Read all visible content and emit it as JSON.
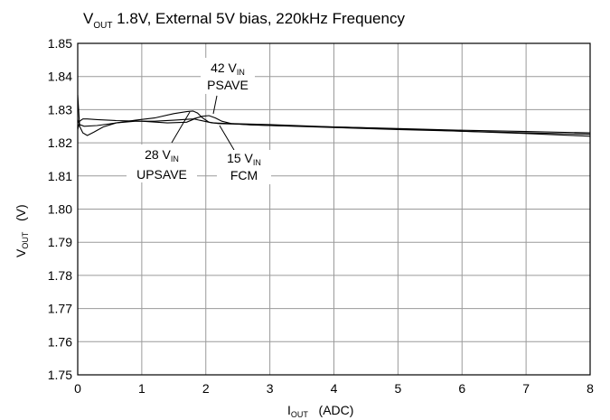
{
  "chart_data": {
    "type": "line",
    "title": {
      "main": "V",
      "sub": "OUT",
      "rest": " 1.8V, External 5V bias, 220kHz Frequency"
    },
    "xlabel": {
      "main": "I",
      "sub": "OUT",
      "rest": "   (ADC)"
    },
    "ylabel": {
      "main": "V",
      "sub": "OUT",
      "rest": "   (V)"
    },
    "xlim": [
      0,
      8
    ],
    "ylim": [
      1.75,
      1.85
    ],
    "x_ticks": [
      "0",
      "1",
      "2",
      "3",
      "4",
      "5",
      "6",
      "7",
      "8"
    ],
    "y_ticks": [
      "1.75",
      "1.76",
      "1.77",
      "1.78",
      "1.79",
      "1.80",
      "1.81",
      "1.82",
      "1.83",
      "1.84",
      "1.85"
    ],
    "grid": true,
    "series": [
      {
        "x": [
          0,
          0.03,
          0.08,
          0.15,
          0.3,
          0.6,
          1.0,
          1.4,
          1.7,
          1.82,
          1.9,
          2.1,
          2.4,
          3,
          4,
          5,
          6,
          7,
          8
        ],
        "y": [
          1.824,
          1.8265,
          1.8272,
          1.8272,
          1.827,
          1.8267,
          1.8265,
          1.826,
          1.8262,
          1.8272,
          1.8268,
          1.826,
          1.8258,
          1.8255,
          1.8248,
          1.8242,
          1.8235,
          1.8228,
          1.822
        ]
      },
      {
        "x": [
          0,
          0.03,
          0.08,
          0.15,
          0.25,
          0.4,
          0.6,
          0.9,
          1.2,
          1.5,
          1.7,
          1.8,
          1.87,
          1.95,
          2.05,
          2.2,
          2.5,
          3,
          4,
          5,
          6,
          7,
          8
        ],
        "y": [
          1.8345,
          1.825,
          1.823,
          1.8222,
          1.8232,
          1.8248,
          1.826,
          1.8268,
          1.8275,
          1.8288,
          1.8294,
          1.8296,
          1.829,
          1.8275,
          1.8262,
          1.8258,
          1.8256,
          1.8252,
          1.8248,
          1.8243,
          1.8238,
          1.8234,
          1.823
        ]
      },
      {
        "x": [
          0,
          0.03,
          0.1,
          0.3,
          0.6,
          0.9,
          1.2,
          1.5,
          1.8,
          1.95,
          2.05,
          2.15,
          2.25,
          2.4,
          2.7,
          3,
          4,
          5,
          6,
          7,
          8
        ],
        "y": [
          1.827,
          1.8255,
          1.825,
          1.8252,
          1.826,
          1.8265,
          1.8265,
          1.8268,
          1.8272,
          1.828,
          1.8282,
          1.8275,
          1.8265,
          1.8258,
          1.8254,
          1.8252,
          1.8246,
          1.824,
          1.8235,
          1.823,
          1.8226
        ]
      }
    ],
    "annotations": [
      {
        "main": "42 V",
        "sub": "IN",
        "line2": "PSAVE"
      },
      {
        "main": "28 V",
        "sub": "IN",
        "line2": "UPSAVE"
      },
      {
        "main": "15 V",
        "sub": "IN",
        "line2": "FCM"
      }
    ]
  }
}
